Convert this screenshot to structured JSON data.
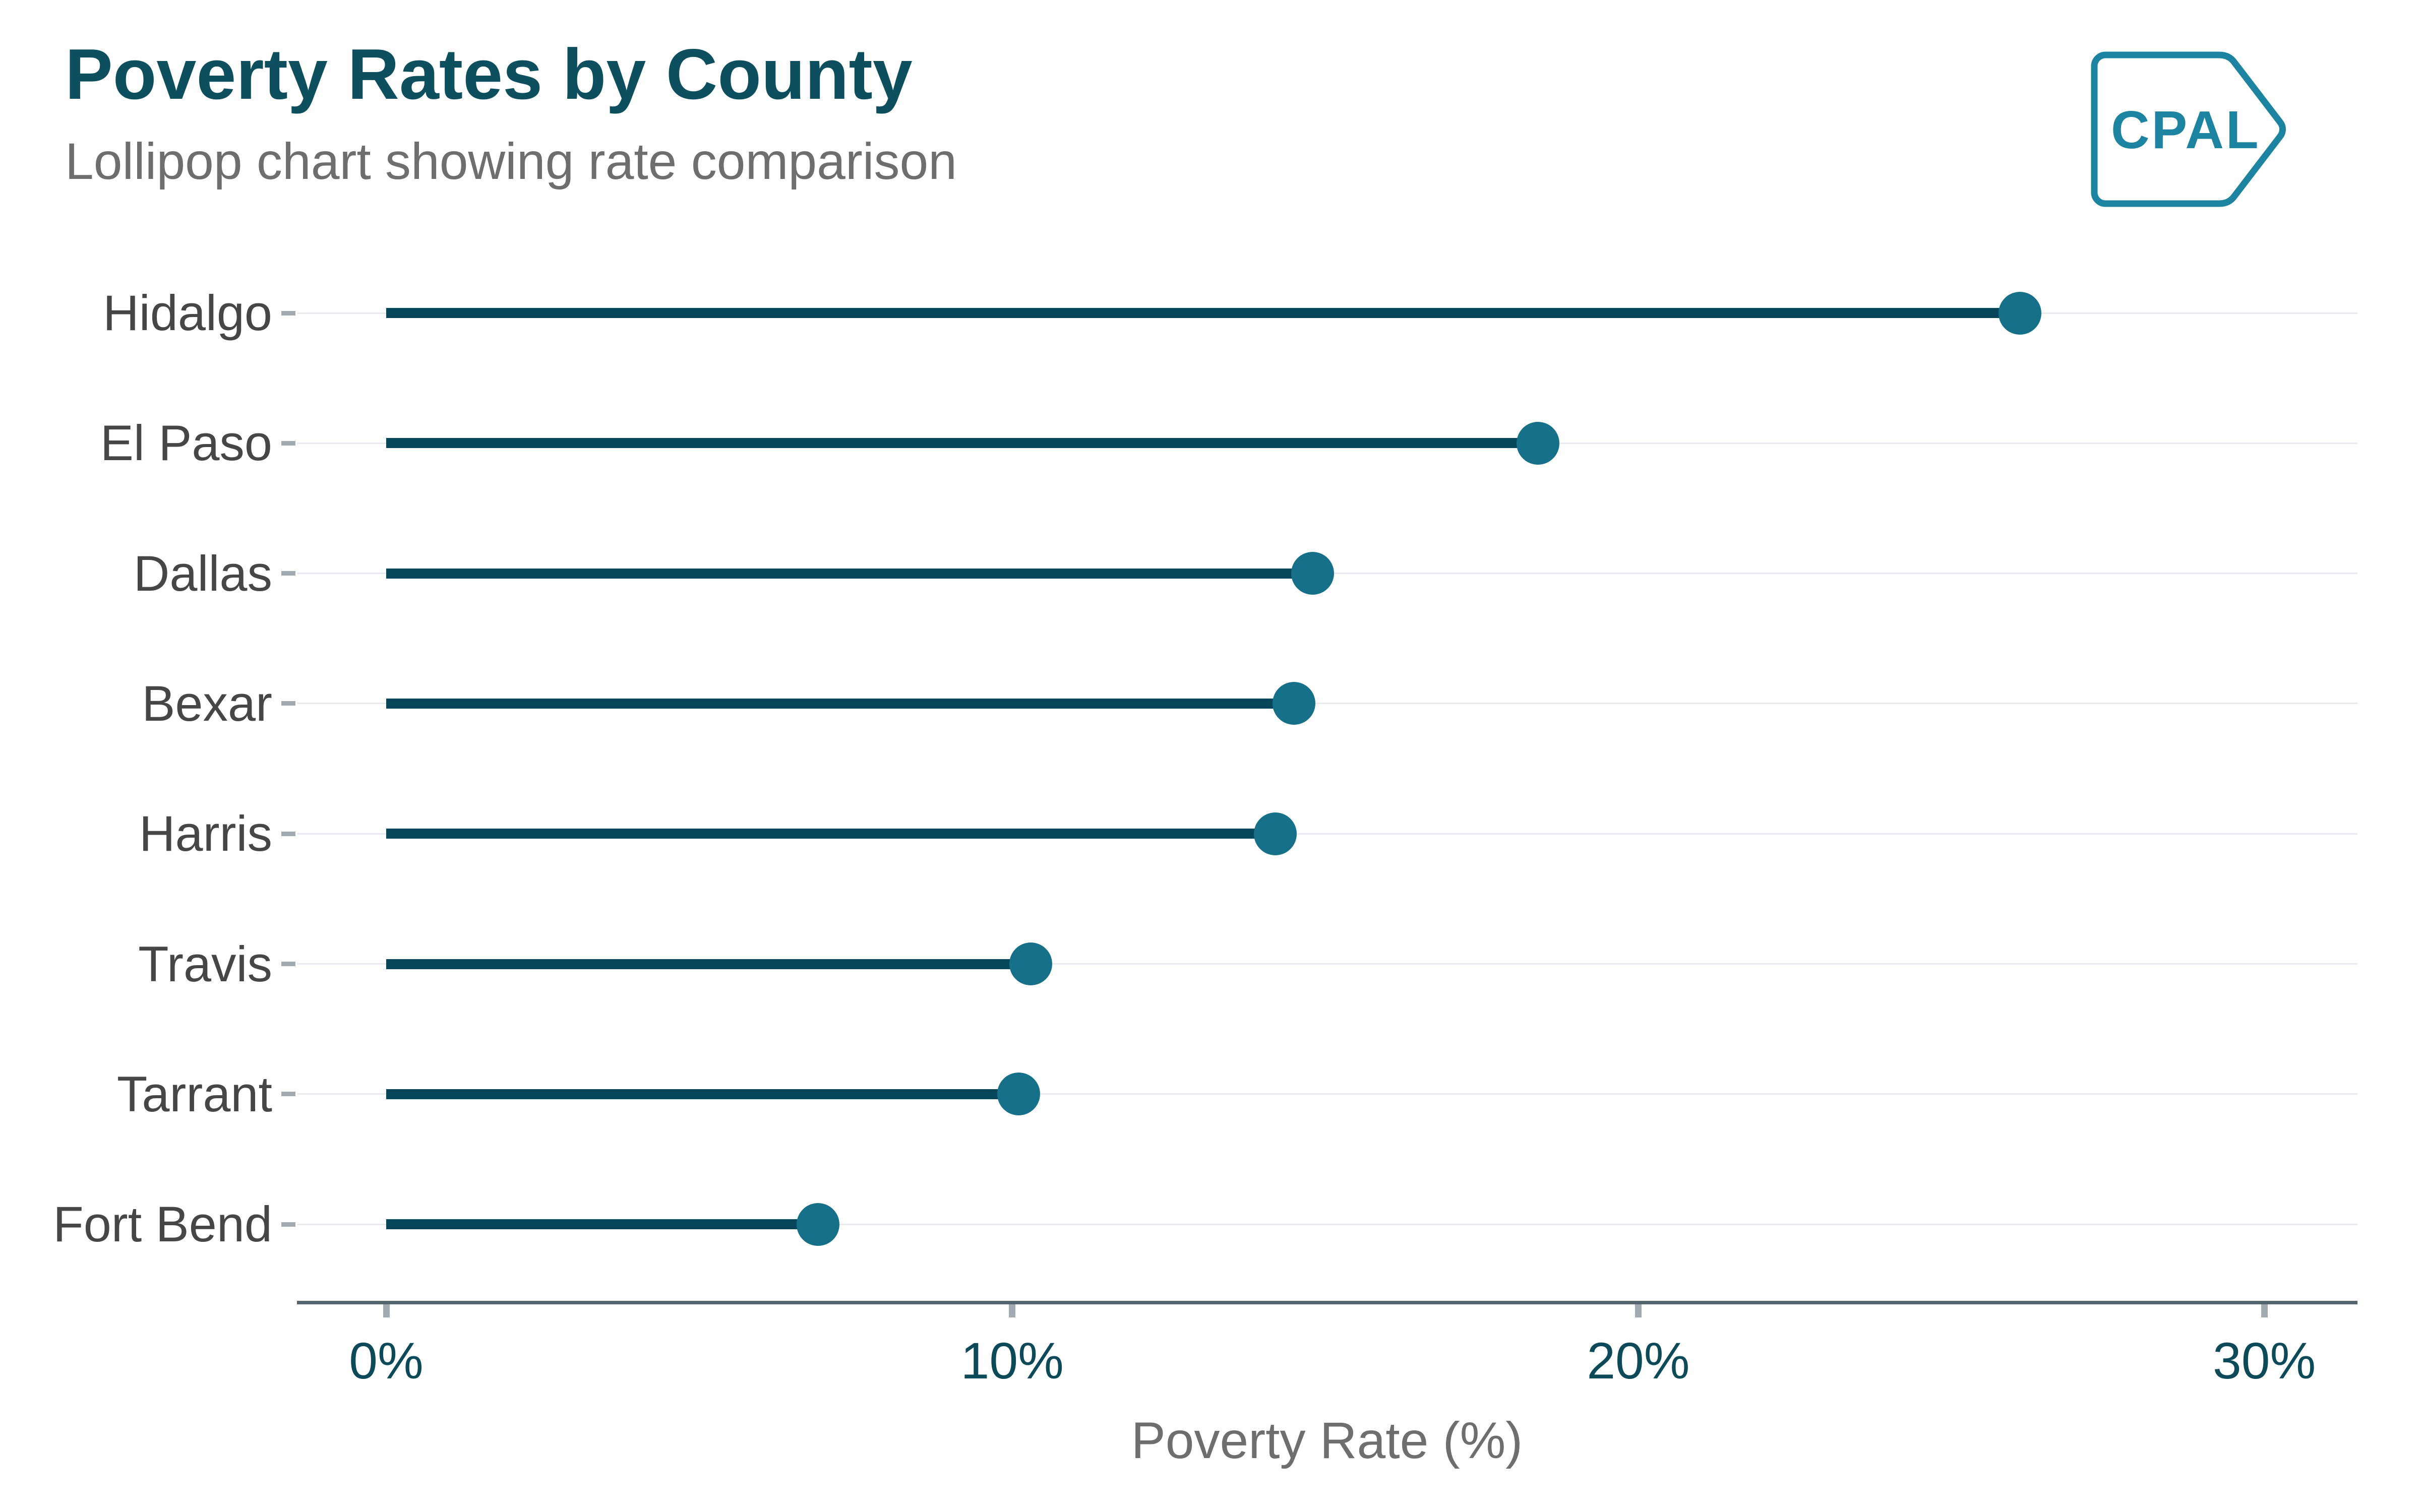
{
  "header": {
    "title": "Poverty Rates by County",
    "subtitle": "Lollipop chart showing rate comparison"
  },
  "logo": {
    "text": "CPAL"
  },
  "chart_data": {
    "type": "lollipop",
    "orientation": "horizontal",
    "title": "Poverty Rates by County",
    "subtitle": "Lollipop chart showing rate comparison",
    "categories": [
      "Hidalgo",
      "El Paso",
      "Dallas",
      "Bexar",
      "Harris",
      "Travis",
      "Tarrant",
      "Fort Bend"
    ],
    "values": [
      26.1,
      18.4,
      14.8,
      14.5,
      14.2,
      10.3,
      10.1,
      6.9
    ],
    "unit": "%",
    "xlabel": "Poverty Rate (%)",
    "ylabel": "",
    "xlim": [
      0,
      30
    ],
    "x_ticks": [
      0,
      10,
      20,
      30
    ],
    "x_tick_labels": [
      "0%",
      "10%",
      "20%",
      "30%"
    ],
    "grid": "horizontal-only",
    "legend": "none"
  },
  "colors": {
    "title": "#0D4F5E",
    "subtitle": "#6E6E6E",
    "category_label": "#464646",
    "stem": "#06465A",
    "dot": "#17708A",
    "gridline": "#E7EAEE",
    "axis_line": "#556570",
    "tick_mark": "#A2ABB1",
    "tick_label": "#0C4A5A",
    "axis_title": "#6E6E6E",
    "logo_teal": "#1C84A0",
    "background": "#FFFFFF"
  }
}
